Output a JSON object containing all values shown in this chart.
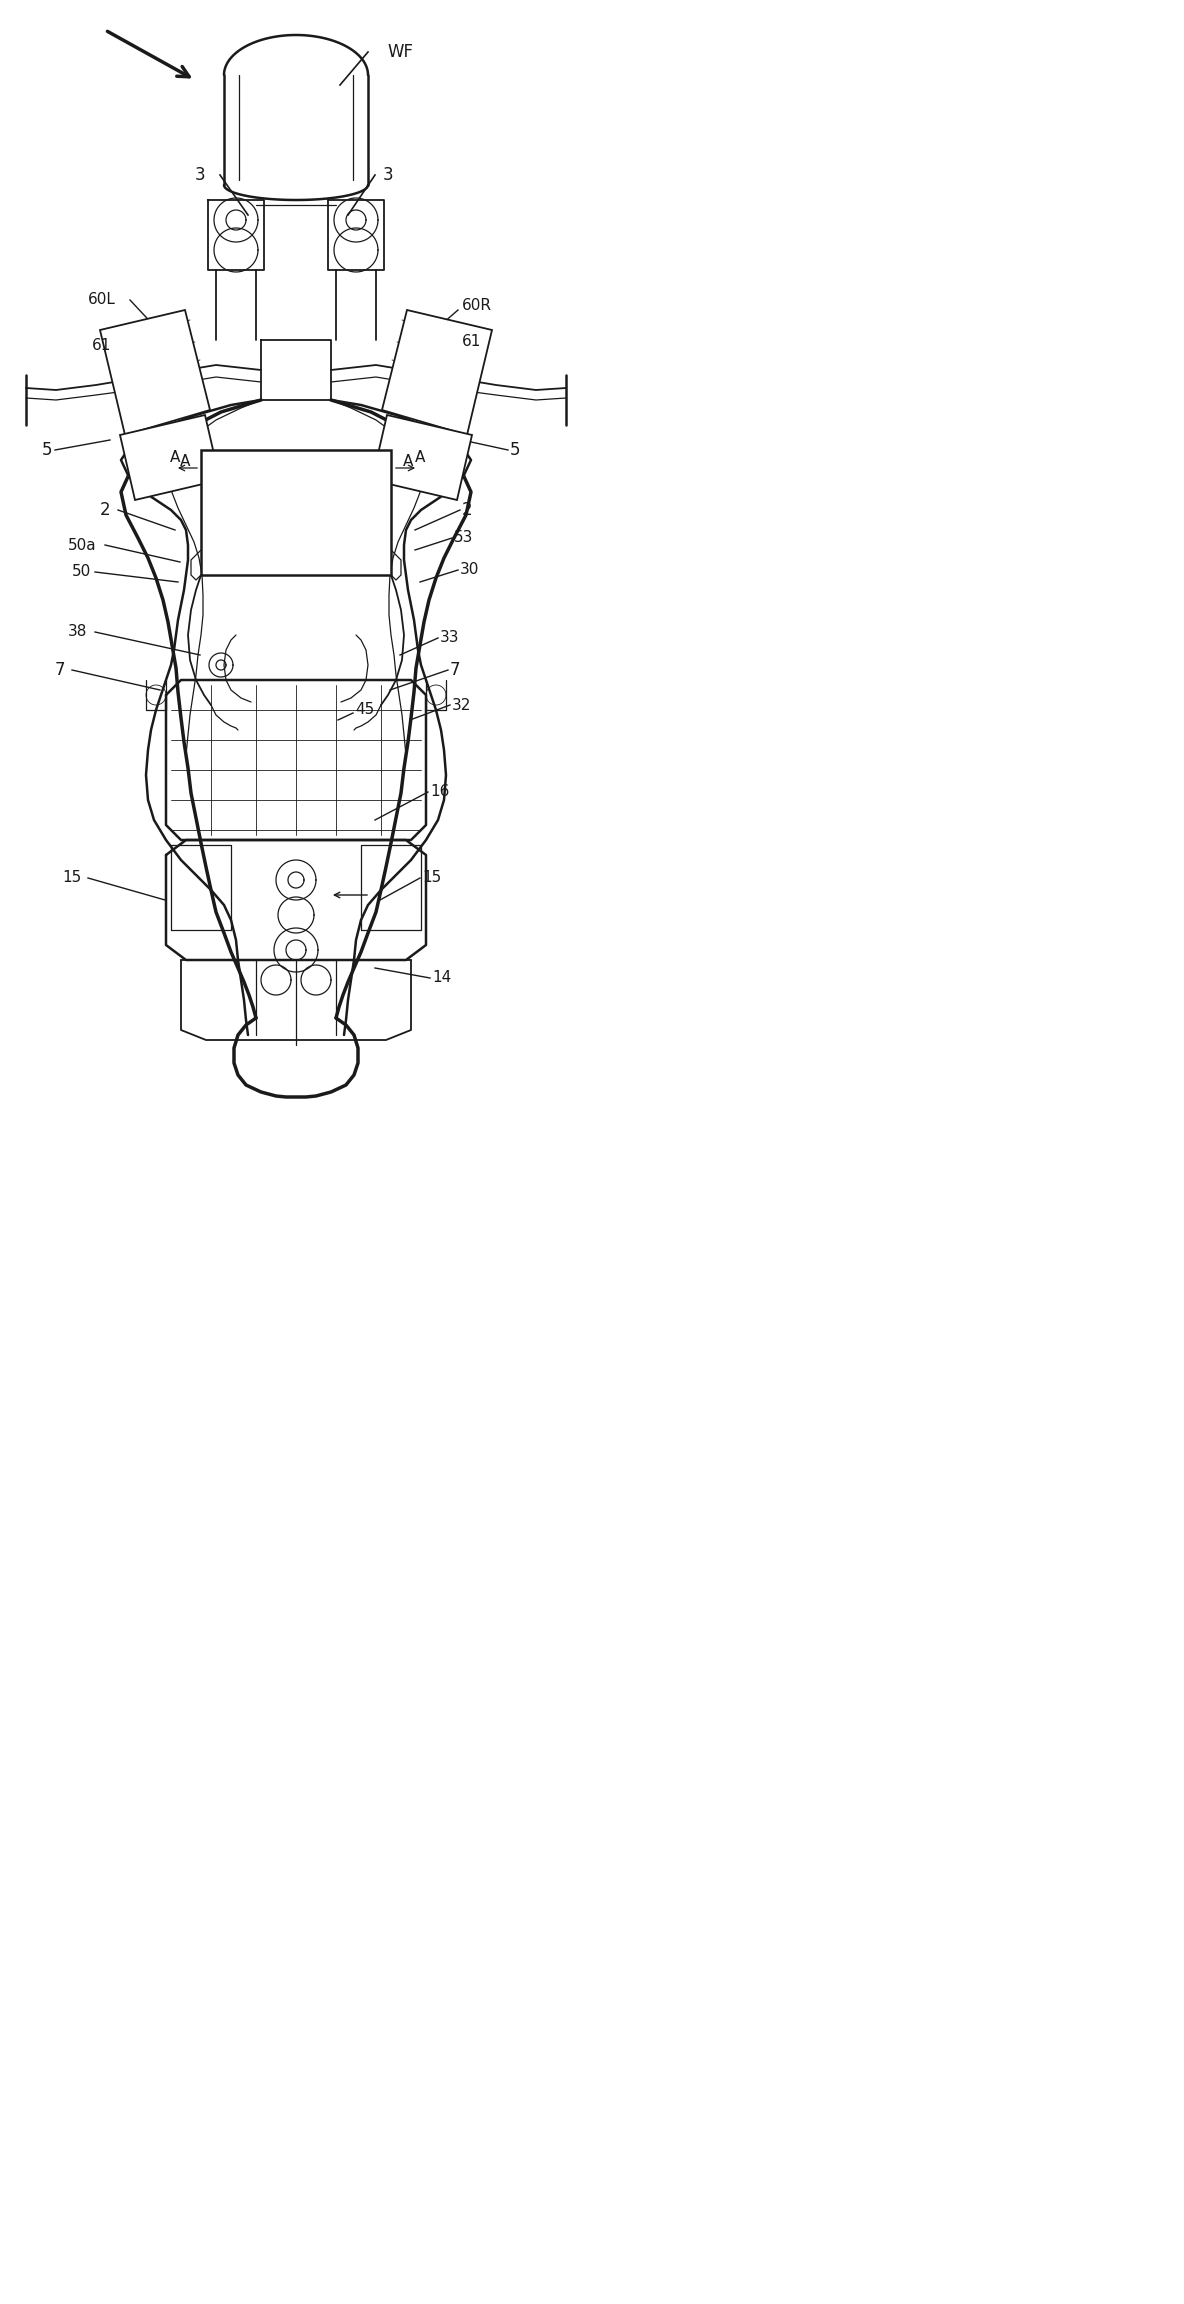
{
  "bg_color": "#ffffff",
  "line_color": "#1a1a1a",
  "figsize": [
    11.84,
    23.04
  ],
  "dpi": 100,
  "xlim": [
    0,
    592
  ],
  "ylim": [
    1152,
    0
  ]
}
